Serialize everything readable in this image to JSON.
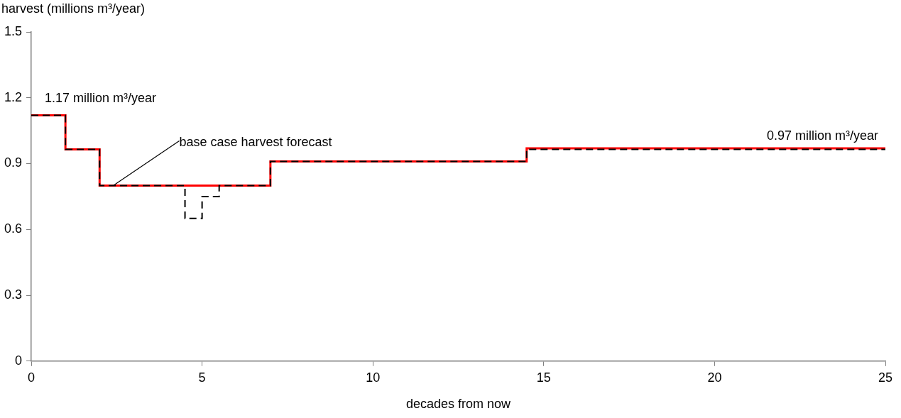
{
  "chart_data": {
    "type": "step",
    "xlabel": "decades from now",
    "ylabel": "harvest (millions m³/year)",
    "xlim": [
      0,
      25
    ],
    "xticks": [
      0,
      5,
      10,
      15,
      20,
      25
    ],
    "ylim": [
      0,
      1.5
    ],
    "yticks": [
      0,
      0.3,
      0.6,
      0.9,
      1.2,
      1.5
    ],
    "grid": false,
    "legend": false,
    "marker": "none",
    "series": [
      {
        "color": "#ff0000",
        "line_style": "solid",
        "x": [
          0,
          1,
          2,
          7,
          14.5,
          25
        ],
        "values": [
          1.12,
          0.965,
          0.8,
          0.91,
          0.97,
          0.97
        ]
      },
      {
        "color": "#000000",
        "line_style": "dashed",
        "x": [
          0,
          1,
          2,
          4.5,
          5,
          5.5,
          7,
          14.5,
          25
        ],
        "values": [
          1.12,
          0.965,
          0.8,
          0.65,
          0.75,
          0.8,
          0.91,
          0.965,
          0.965
        ]
      }
    ],
    "annotations": [
      {
        "text": "1.17 million m³/year",
        "x": 0,
        "y": 1.12
      },
      {
        "text": "base case harvest forecast",
        "x": 2.4,
        "y": 0.8
      },
      {
        "text": "0.97 million m³/year",
        "x": 25,
        "y": 0.97
      }
    ]
  }
}
